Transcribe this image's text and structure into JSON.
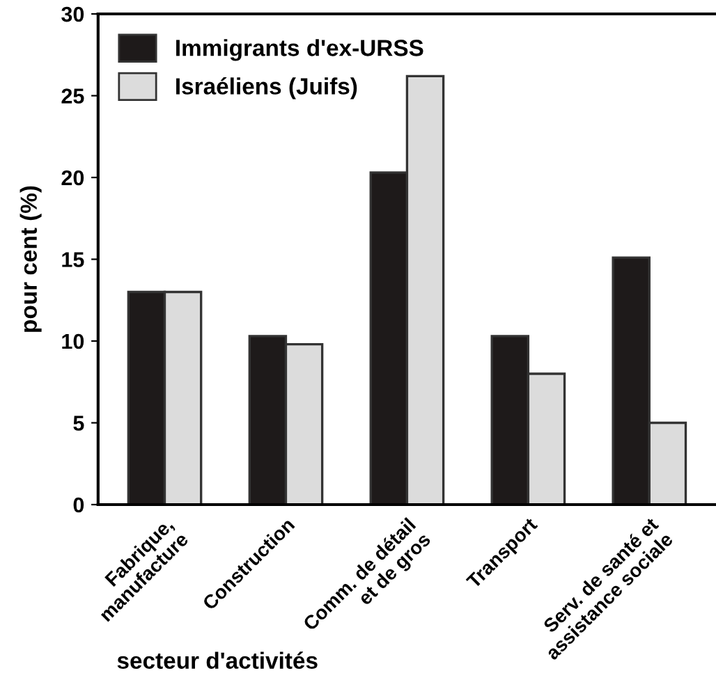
{
  "chart_data": {
    "type": "bar",
    "xlabel": "secteur d'activités",
    "ylabel": "pour cent (%)",
    "categories": [
      "Fabrique,\nmanufacture",
      "Construction",
      "Comm. de détail\net de gros",
      "Transport",
      "Serv. de santé et\nassistance sociale"
    ],
    "series": [
      {
        "name": "Immigrants d'ex-URSS",
        "color": "#1e1a1a",
        "values": [
          13.0,
          10.3,
          20.3,
          10.3,
          15.1
        ]
      },
      {
        "name": "Israéliens (Juifs)",
        "color": "#dcdcdc",
        "values": [
          13.0,
          9.8,
          26.2,
          8.0,
          5.0
        ]
      }
    ],
    "ylim": [
      0,
      30
    ],
    "yticks": [
      0,
      5,
      10,
      15,
      20,
      25,
      30
    ],
    "grid": false,
    "legend": "top left"
  }
}
